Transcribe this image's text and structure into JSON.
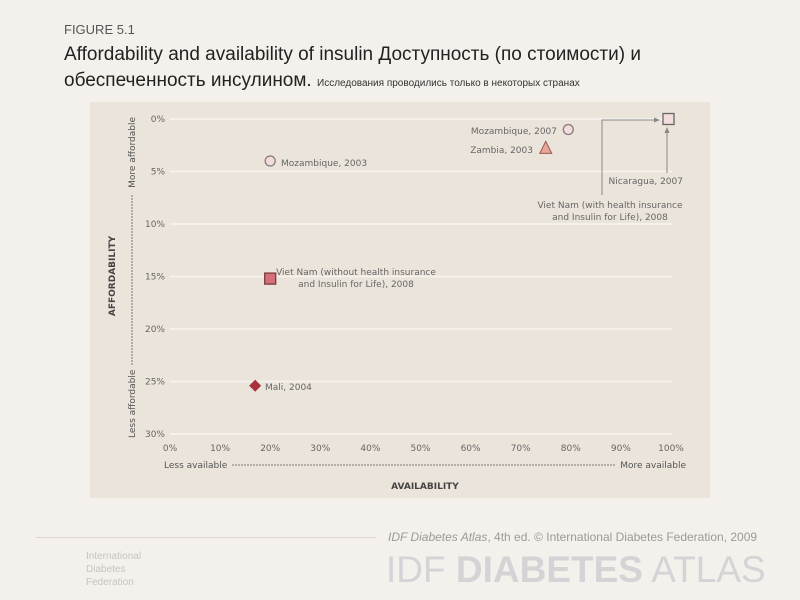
{
  "figure_label": "FIGURE 5.1",
  "title": "Affordability and availability of insulin Доступность (по стоимости) и обеспеченность инсулином.",
  "subtitle": "Исследования проводились только в некоторых странах",
  "chart_data": {
    "type": "scatter",
    "xlabel": "AVAILABILITY",
    "ylabel": "AFFORDABILITY",
    "x_low_label": "Less available",
    "x_high_label": "More available",
    "y_low_label": "Less affordable",
    "y_high_label": "More affordable",
    "xlim": [
      0,
      100
    ],
    "ylim": [
      0,
      30
    ],
    "y_inverted": true,
    "grid": "horizontal",
    "xticks": [
      "0%",
      "10%",
      "20%",
      "30%",
      "40%",
      "50%",
      "60%",
      "70%",
      "80%",
      "90%",
      "100%"
    ],
    "yticks": [
      "0%",
      "5%",
      "10%",
      "15%",
      "20%",
      "25%",
      "30%"
    ],
    "points": [
      {
        "label": "Mozambique, 2003",
        "x": 20,
        "y": 4,
        "marker": "circle",
        "color": "#f0dcdc"
      },
      {
        "label": "Viet Nam (without health insurance and Insulin for Life), 2008",
        "x": 20,
        "y": 15.2,
        "marker": "square",
        "color": "#d4707a"
      },
      {
        "label": "Mali, 2004",
        "x": 17,
        "y": 25.4,
        "marker": "diamond",
        "color": "#a8333f"
      },
      {
        "label": "Mozambique, 2007",
        "x": 79.5,
        "y": 1,
        "marker": "circle",
        "color": "#f0dcdc"
      },
      {
        "label": "Zambia, 2003",
        "x": 75,
        "y": 2.8,
        "marker": "triangle",
        "color": "#eaa59a"
      },
      {
        "label": "Nicaragua, 2007",
        "x": 99.5,
        "y": 0,
        "marker": "square",
        "color": "#f3dcdc"
      }
    ],
    "annotation": "Viet Nam (with health insurance and Insulin for Life), 2008"
  },
  "footer": {
    "credit_italic": "IDF Diabetes Atlas",
    "credit_rest": ", 4th ed.  © International Diabetes Federation, 2009",
    "brand_1": "IDF ",
    "brand_2": "DIABETES",
    "brand_3": " ATLAS",
    "org": [
      "International",
      "Diabetes",
      "Federation"
    ]
  }
}
